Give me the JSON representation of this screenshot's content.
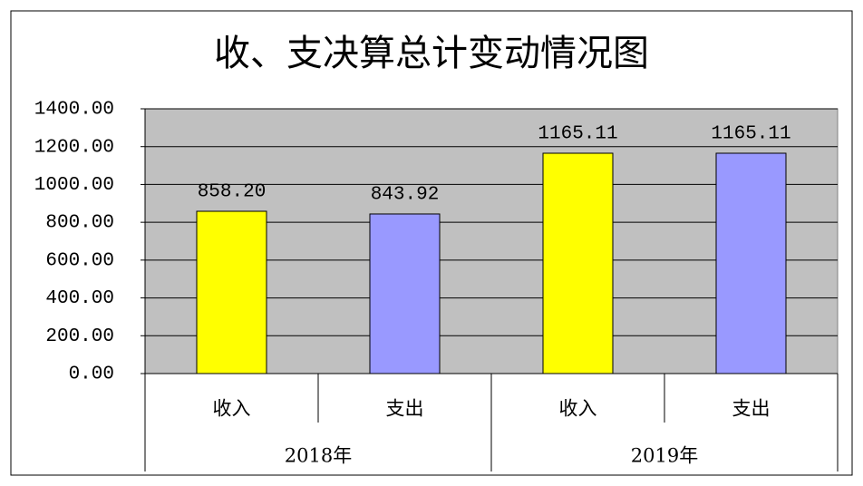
{
  "chart_data": {
    "type": "bar",
    "title": "收、支决算总计变动情况图",
    "categories": [
      "收入",
      "支出",
      "收入",
      "支出"
    ],
    "groups": [
      "2018年",
      "2019年"
    ],
    "values": [
      858.2,
      843.92,
      1165.11,
      1165.11
    ],
    "value_labels": [
      "858.20",
      "843.92",
      "1165.11",
      "1165.11"
    ],
    "colors": [
      "#ffff00",
      "#9999ff",
      "#ffff00",
      "#9999ff"
    ],
    "ylim": [
      0,
      1400
    ],
    "yticks": [
      {
        "value": 0,
        "label": "0.00"
      },
      {
        "value": 200,
        "label": "200.00"
      },
      {
        "value": 400,
        "label": "400.00"
      },
      {
        "value": 600,
        "label": "600.00"
      },
      {
        "value": 800,
        "label": "800.00"
      },
      {
        "value": 1000,
        "label": "1000.00"
      },
      {
        "value": 1200,
        "label": "1200.00"
      },
      {
        "value": 1400,
        "label": "1400.00"
      }
    ],
    "grid": true,
    "plot_background": "#c0c0c0"
  }
}
